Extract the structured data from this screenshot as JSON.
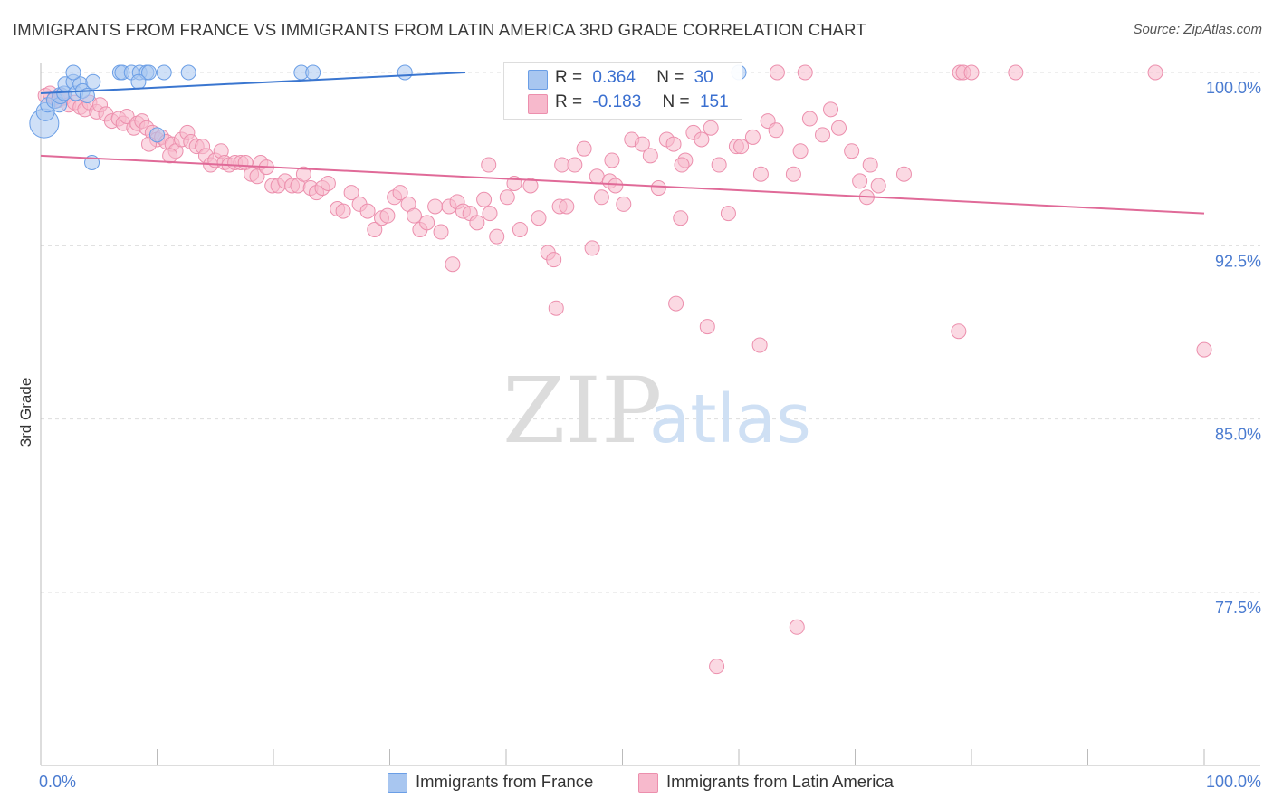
{
  "title": "IMMIGRANTS FROM FRANCE VS IMMIGRANTS FROM LATIN AMERICA 3RD GRADE CORRELATION CHART",
  "source": "Source: ZipAtlas.com",
  "watermark": {
    "zip": "ZIP",
    "atlas": "atlas"
  },
  "colors": {
    "blue_fill": "#a8c6f0",
    "blue_stroke": "#6a9ee6",
    "blue_line": "#3a76d0",
    "pink_fill": "#f7b9cc",
    "pink_stroke": "#ec8fad",
    "pink_line": "#e06a98",
    "label_blue": "#4a7bd0",
    "grid": "#dddddd"
  },
  "legend": {
    "rows": [
      {
        "r_label": "R =",
        "r_value": "0.364",
        "n_label": "N =",
        "n_value": "30"
      },
      {
        "r_label": "R =",
        "r_value": "-0.183",
        "n_label": "N =",
        "n_value": "151"
      }
    ]
  },
  "bottom_legend": {
    "france": "Immigrants from France",
    "latam": "Immigrants from Latin America"
  },
  "chart_data": {
    "type": "scatter",
    "title": "IMMIGRANTS FROM FRANCE VS IMMIGRANTS FROM LATIN AMERICA 3RD GRADE CORRELATION CHART",
    "xlabel": "",
    "ylabel": "3rd Grade",
    "xlim": [
      0,
      100
    ],
    "ylim": [
      70.5,
      101
    ],
    "x_tick_labels": [
      "0.0%",
      "100.0%"
    ],
    "y_ticks": [
      100.0,
      92.5,
      85.0,
      77.5
    ],
    "y_tick_labels": [
      "100.0%",
      "92.5%",
      "85.0%",
      "77.5%"
    ],
    "grid": true,
    "legend_position": "top-center",
    "series": [
      {
        "name": "Immigrants from France",
        "color": "blue",
        "R": 0.364,
        "N": 30,
        "trend": {
          "x0": 0,
          "y0": 99.1,
          "x1": 36.5,
          "y1": 100.0
        },
        "points": [
          [
            0.3,
            97.8,
            16
          ],
          [
            0.4,
            98.3,
            10
          ],
          [
            0.6,
            98.6,
            8
          ],
          [
            1.2,
            98.8,
            9
          ],
          [
            1.6,
            98.6,
            8
          ],
          [
            1.7,
            99.0,
            9
          ],
          [
            2.0,
            99.1,
            8
          ],
          [
            2.1,
            99.5,
            8
          ],
          [
            2.8,
            99.6,
            8
          ],
          [
            3.0,
            99.1,
            8
          ],
          [
            3.4,
            99.5,
            8
          ],
          [
            3.6,
            99.2,
            8
          ],
          [
            4.5,
            99.6,
            8
          ],
          [
            2.8,
            100.0,
            8
          ],
          [
            6.8,
            100.0,
            8
          ],
          [
            7.0,
            100.0,
            8
          ],
          [
            7.8,
            100.0,
            8
          ],
          [
            8.5,
            100.0,
            8
          ],
          [
            9.1,
            100.0,
            8
          ],
          [
            9.3,
            100.0,
            8
          ],
          [
            10.6,
            100.0,
            8
          ],
          [
            12.7,
            100.0,
            8
          ],
          [
            8.4,
            99.6,
            8
          ],
          [
            22.4,
            100.0,
            8
          ],
          [
            23.4,
            100.0,
            8
          ],
          [
            31.3,
            100.0,
            8
          ],
          [
            60.0,
            100.0,
            8
          ],
          [
            4.4,
            96.1,
            8
          ],
          [
            10.0,
            97.3,
            8
          ],
          [
            4.0,
            99.0,
            8
          ]
        ]
      },
      {
        "name": "Immigrants from Latin America",
        "color": "pink",
        "R": -0.183,
        "N": 151,
        "trend": {
          "x0": 0,
          "y0": 96.4,
          "x1": 100,
          "y1": 93.9
        },
        "points": [
          [
            0.4,
            99.0
          ],
          [
            0.8,
            99.1
          ],
          [
            1.2,
            98.9
          ],
          [
            1.5,
            98.8
          ],
          [
            1.8,
            99.0
          ],
          [
            2.0,
            98.9
          ],
          [
            2.4,
            98.6
          ],
          [
            2.9,
            98.7
          ],
          [
            3.4,
            98.5
          ],
          [
            3.8,
            98.4
          ],
          [
            4.2,
            98.7
          ],
          [
            4.8,
            98.3
          ],
          [
            5.1,
            98.6
          ],
          [
            5.6,
            98.2
          ],
          [
            6.1,
            97.9
          ],
          [
            6.7,
            98.0
          ],
          [
            7.1,
            97.8
          ],
          [
            7.4,
            98.1
          ],
          [
            8.0,
            97.6
          ],
          [
            8.3,
            97.8
          ],
          [
            8.7,
            97.9
          ],
          [
            9.1,
            97.6
          ],
          [
            9.6,
            97.4
          ],
          [
            10.0,
            97.1
          ],
          [
            10.4,
            97.2
          ],
          [
            10.8,
            97.0
          ],
          [
            11.3,
            96.9
          ],
          [
            11.6,
            96.6
          ],
          [
            12.1,
            97.1
          ],
          [
            12.6,
            97.4
          ],
          [
            12.9,
            97.0
          ],
          [
            13.4,
            96.8
          ],
          [
            13.9,
            96.8
          ],
          [
            14.2,
            96.4
          ],
          [
            14.6,
            96.0
          ],
          [
            15.0,
            96.2
          ],
          [
            15.5,
            96.6
          ],
          [
            15.8,
            96.1
          ],
          [
            16.2,
            96.0
          ],
          [
            16.7,
            96.1
          ],
          [
            17.2,
            96.1
          ],
          [
            17.6,
            96.1
          ],
          [
            18.1,
            95.6
          ],
          [
            18.6,
            95.5
          ],
          [
            18.9,
            96.1
          ],
          [
            19.4,
            95.9
          ],
          [
            19.9,
            95.1
          ],
          [
            20.4,
            95.1
          ],
          [
            21.0,
            95.3
          ],
          [
            21.6,
            95.1
          ],
          [
            22.1,
            95.1
          ],
          [
            22.6,
            95.6
          ],
          [
            23.2,
            95.0
          ],
          [
            23.7,
            94.8
          ],
          [
            24.2,
            95.0
          ],
          [
            24.7,
            95.2
          ],
          [
            25.5,
            94.1
          ],
          [
            26.0,
            94.0
          ],
          [
            26.7,
            94.8
          ],
          [
            27.4,
            94.3
          ],
          [
            28.1,
            94.0
          ],
          [
            28.7,
            93.2
          ],
          [
            29.3,
            93.7
          ],
          [
            29.8,
            93.8
          ],
          [
            30.4,
            94.6
          ],
          [
            30.9,
            94.8
          ],
          [
            31.6,
            94.3
          ],
          [
            32.1,
            93.8
          ],
          [
            32.6,
            93.2
          ],
          [
            33.2,
            93.5
          ],
          [
            33.9,
            94.2
          ],
          [
            34.4,
            93.1
          ],
          [
            35.1,
            94.2
          ],
          [
            35.8,
            94.4
          ],
          [
            36.3,
            94.0
          ],
          [
            36.9,
            93.9
          ],
          [
            37.5,
            93.5
          ],
          [
            38.1,
            94.5
          ],
          [
            38.6,
            93.9
          ],
          [
            39.2,
            92.9
          ],
          [
            40.1,
            94.6
          ],
          [
            40.7,
            95.2
          ],
          [
            41.2,
            93.2
          ],
          [
            42.1,
            95.1
          ],
          [
            42.8,
            93.7
          ],
          [
            43.6,
            92.2
          ],
          [
            44.1,
            91.9
          ],
          [
            44.6,
            94.2
          ],
          [
            45.2,
            94.2
          ],
          [
            45.9,
            96.0
          ],
          [
            46.7,
            96.7
          ],
          [
            47.4,
            92.4
          ],
          [
            47.8,
            95.5
          ],
          [
            48.2,
            94.6
          ],
          [
            48.9,
            95.3
          ],
          [
            49.4,
            95.1
          ],
          [
            50.1,
            94.3
          ],
          [
            50.8,
            97.1
          ],
          [
            51.7,
            96.9
          ],
          [
            52.4,
            96.4
          ],
          [
            53.1,
            95.0
          ],
          [
            53.8,
            97.1
          ],
          [
            54.4,
            96.9
          ],
          [
            55.0,
            93.7
          ],
          [
            56.1,
            97.4
          ],
          [
            56.8,
            97.1
          ],
          [
            57.6,
            97.6
          ],
          [
            58.3,
            96.0
          ],
          [
            59.1,
            93.9
          ],
          [
            59.8,
            96.8
          ],
          [
            60.2,
            96.8
          ],
          [
            61.2,
            97.2
          ],
          [
            61.9,
            95.6
          ],
          [
            62.5,
            97.9
          ],
          [
            63.2,
            97.5
          ],
          [
            64.7,
            95.6
          ],
          [
            65.3,
            96.6
          ],
          [
            66.1,
            98.0
          ],
          [
            67.2,
            97.3
          ],
          [
            67.9,
            98.4
          ],
          [
            68.6,
            97.6
          ],
          [
            69.7,
            96.6
          ],
          [
            70.4,
            95.3
          ],
          [
            71.0,
            94.6
          ],
          [
            71.3,
            96.0
          ],
          [
            72.0,
            95.1
          ],
          [
            74.2,
            95.6
          ],
          [
            38.5,
            96.0
          ],
          [
            35.4,
            91.7
          ],
          [
            44.3,
            89.8
          ],
          [
            54.6,
            90.0
          ],
          [
            49.1,
            96.2
          ],
          [
            44.8,
            96.0
          ],
          [
            55.4,
            96.2
          ],
          [
            57.3,
            89.0
          ],
          [
            61.8,
            88.2
          ],
          [
            78.9,
            88.8
          ],
          [
            100.0,
            88.0
          ],
          [
            65.0,
            76.0
          ],
          [
            58.1,
            74.3
          ],
          [
            63.3,
            100.0
          ],
          [
            65.7,
            100.0
          ],
          [
            79.0,
            100.0
          ],
          [
            79.3,
            100.0
          ],
          [
            80.0,
            100.0
          ],
          [
            83.8,
            100.0
          ],
          [
            95.8,
            100.0
          ],
          [
            9.3,
            96.9
          ],
          [
            11.1,
            96.4
          ],
          [
            55.1,
            96.0
          ]
        ]
      }
    ]
  }
}
